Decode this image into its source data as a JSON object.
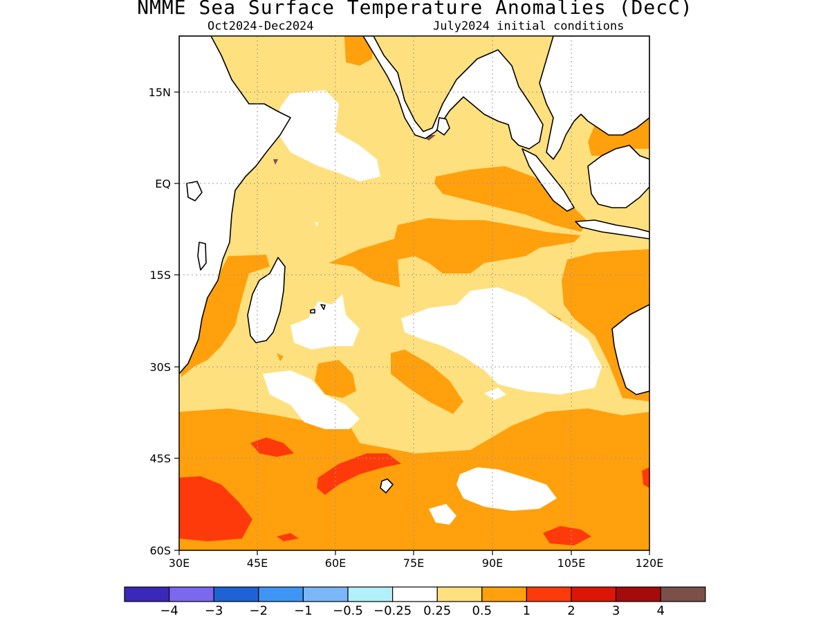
{
  "title": "NMME Sea Surface Temperature Anomalies (DecC)",
  "subtitle_left": "Oct2024-Dec2024",
  "subtitle_right": "July2024 initial conditions",
  "map": {
    "lon_range": [
      30,
      120
    ],
    "lat_range": [
      -60,
      24
    ],
    "grid": true,
    "x_ticks": [
      "30E",
      "45E",
      "60E",
      "75E",
      "90E",
      "105E",
      "120E"
    ],
    "y_ticks": [
      "15N",
      "EQ",
      "15S",
      "30S",
      "45S",
      "60S"
    ],
    "land_color": "#ffffff",
    "field_regions": [
      {
        "cat": "0.25-0.5",
        "desc": "broad basin-wide slight warm anomaly"
      },
      {
        "cat": "0.5-1",
        "desc": "southern ocean and eastern basin warm band"
      },
      {
        "cat": "1-2",
        "desc": "warm cores south of 45S"
      }
    ]
  },
  "colorbar": {
    "colors": [
      "#3a28b8",
      "#7b68ee",
      "#1d63d6",
      "#3d96f5",
      "#7ab7f8",
      "#b2f0fa",
      "#ffffff",
      "#ffe07e",
      "#ffa00c",
      "#ff3a0a",
      "#dd1507",
      "#a50b0b",
      "#7a5048"
    ],
    "labels": [
      "-4",
      "-3",
      "-2",
      "-1",
      "-0.5",
      "-0.25",
      "0.25",
      "0.5",
      "1",
      "2",
      "3",
      "4"
    ]
  }
}
